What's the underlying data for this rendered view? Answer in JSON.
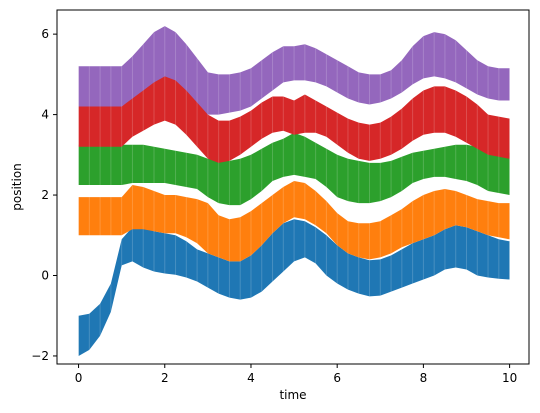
{
  "chart_data": {
    "type": "area",
    "xlabel": "time",
    "ylabel": "position",
    "xlim": [
      -0.5,
      10.45
    ],
    "ylim": [
      -2.2,
      6.6
    ],
    "xticks": [
      0,
      2,
      4,
      6,
      8,
      10
    ],
    "yticks": [
      -2,
      0,
      2,
      4,
      6
    ],
    "grid": false,
    "x": [
      0,
      0.25,
      0.5,
      0.75,
      1.0,
      1.25,
      1.5,
      1.75,
      2.0,
      2.25,
      2.5,
      2.75,
      3.0,
      3.25,
      3.5,
      3.75,
      4.0,
      4.25,
      4.5,
      4.75,
      5.0,
      5.25,
      5.5,
      5.75,
      6.0,
      6.25,
      6.5,
      6.75,
      7.0,
      7.25,
      7.5,
      7.75,
      8.0,
      8.25,
      8.5,
      8.75,
      9.0,
      9.25,
      9.5,
      9.75,
      10.0
    ],
    "series": [
      {
        "color": "#1f77b4",
        "lower": [
          -2.0,
          -1.85,
          -1.5,
          -0.9,
          0.25,
          0.35,
          0.2,
          0.1,
          0.05,
          0.02,
          -0.05,
          -0.15,
          -0.3,
          -0.45,
          -0.55,
          -0.6,
          -0.55,
          -0.4,
          -0.15,
          0.1,
          0.35,
          0.45,
          0.3,
          0.0,
          -0.2,
          -0.35,
          -0.45,
          -0.52,
          -0.5,
          -0.4,
          -0.3,
          -0.2,
          -0.1,
          0.0,
          0.15,
          0.2,
          0.15,
          0.0,
          -0.05,
          -0.08,
          -0.1
        ],
        "upper": [
          -1.0,
          -0.95,
          -0.7,
          -0.2,
          0.9,
          1.2,
          1.2,
          1.1,
          1.05,
          1.0,
          0.85,
          0.65,
          0.55,
          0.45,
          0.35,
          0.35,
          0.5,
          0.75,
          1.05,
          1.3,
          1.4,
          1.35,
          1.2,
          1.0,
          0.75,
          0.55,
          0.45,
          0.38,
          0.4,
          0.5,
          0.65,
          0.8,
          0.9,
          1.0,
          1.15,
          1.25,
          1.2,
          1.1,
          1.0,
          0.9,
          0.85
        ]
      },
      {
        "color": "#ff7f0e",
        "lower": [
          1.0,
          1.0,
          1.0,
          1.0,
          1.0,
          1.15,
          1.15,
          1.1,
          1.05,
          1.05,
          0.95,
          0.8,
          0.55,
          0.45,
          0.35,
          0.35,
          0.5,
          0.75,
          1.05,
          1.3,
          1.45,
          1.4,
          1.25,
          1.05,
          0.75,
          0.55,
          0.45,
          0.4,
          0.45,
          0.55,
          0.7,
          0.8,
          0.9,
          1.0,
          1.15,
          1.25,
          1.2,
          1.1,
          1.0,
          0.95,
          0.9
        ],
        "upper": [
          1.95,
          1.95,
          1.95,
          1.95,
          1.95,
          2.25,
          2.2,
          2.1,
          2.0,
          2.0,
          1.95,
          1.9,
          1.8,
          1.5,
          1.4,
          1.45,
          1.6,
          1.8,
          2.0,
          2.2,
          2.35,
          2.3,
          2.1,
          1.85,
          1.55,
          1.35,
          1.3,
          1.3,
          1.35,
          1.5,
          1.65,
          1.85,
          2.0,
          2.1,
          2.15,
          2.1,
          2.0,
          1.9,
          1.85,
          1.8,
          1.8
        ]
      },
      {
        "color": "#2ca02c",
        "lower": [
          2.25,
          2.25,
          2.25,
          2.25,
          2.25,
          2.3,
          2.3,
          2.3,
          2.3,
          2.25,
          2.2,
          2.15,
          1.95,
          1.8,
          1.75,
          1.75,
          1.9,
          2.1,
          2.35,
          2.45,
          2.5,
          2.45,
          2.4,
          2.2,
          1.95,
          1.85,
          1.8,
          1.8,
          1.85,
          1.95,
          2.1,
          2.3,
          2.4,
          2.45,
          2.45,
          2.4,
          2.35,
          2.25,
          2.1,
          2.05,
          2.0
        ],
        "upper": [
          3.25,
          3.25,
          3.25,
          3.25,
          3.25,
          3.25,
          3.25,
          3.2,
          3.15,
          3.1,
          3.05,
          3.0,
          2.9,
          2.85,
          2.85,
          2.9,
          3.0,
          3.15,
          3.3,
          3.4,
          3.55,
          3.45,
          3.3,
          3.15,
          3.0,
          2.9,
          2.85,
          2.8,
          2.8,
          2.85,
          2.95,
          3.05,
          3.1,
          3.15,
          3.2,
          3.25,
          3.25,
          3.2,
          3.15,
          3.1,
          3.05
        ]
      },
      {
        "color": "#d62728",
        "lower": [
          3.2,
          3.2,
          3.2,
          3.2,
          3.2,
          3.45,
          3.6,
          3.75,
          3.85,
          3.75,
          3.5,
          3.2,
          2.9,
          2.8,
          2.85,
          3.0,
          3.2,
          3.4,
          3.55,
          3.6,
          3.5,
          3.55,
          3.55,
          3.45,
          3.25,
          3.05,
          2.9,
          2.85,
          2.9,
          3.0,
          3.15,
          3.35,
          3.5,
          3.55,
          3.55,
          3.45,
          3.3,
          3.15,
          3.0,
          2.95,
          2.9
        ],
        "upper": [
          4.2,
          4.2,
          4.2,
          4.2,
          4.2,
          4.45,
          4.65,
          4.85,
          5.05,
          4.95,
          4.7,
          4.4,
          4.0,
          3.85,
          3.85,
          3.95,
          4.1,
          4.3,
          4.45,
          4.45,
          4.35,
          4.5,
          4.35,
          4.2,
          4.05,
          3.9,
          3.8,
          3.75,
          3.8,
          3.95,
          4.15,
          4.4,
          4.6,
          4.7,
          4.7,
          4.6,
          4.45,
          4.25,
          4.0,
          3.95,
          3.9
        ]
      },
      {
        "color": "#9467bd",
        "lower": [
          4.2,
          4.2,
          4.2,
          4.2,
          4.2,
          4.4,
          4.6,
          4.8,
          4.95,
          4.85,
          4.6,
          4.3,
          4.0,
          4.0,
          4.05,
          4.1,
          4.2,
          4.4,
          4.6,
          4.8,
          4.85,
          4.85,
          4.8,
          4.7,
          4.55,
          4.4,
          4.3,
          4.25,
          4.3,
          4.4,
          4.55,
          4.75,
          4.9,
          4.95,
          4.9,
          4.8,
          4.65,
          4.5,
          4.4,
          4.35,
          4.35
        ],
        "upper": [
          5.2,
          5.2,
          5.2,
          5.2,
          5.2,
          5.45,
          5.75,
          6.05,
          6.2,
          6.05,
          5.75,
          5.4,
          5.05,
          5.0,
          5.0,
          5.05,
          5.15,
          5.35,
          5.55,
          5.7,
          5.7,
          5.75,
          5.65,
          5.5,
          5.35,
          5.2,
          5.05,
          5.0,
          5.0,
          5.1,
          5.35,
          5.7,
          5.95,
          6.05,
          6.0,
          5.85,
          5.6,
          5.35,
          5.2,
          5.15,
          5.15
        ]
      }
    ]
  }
}
